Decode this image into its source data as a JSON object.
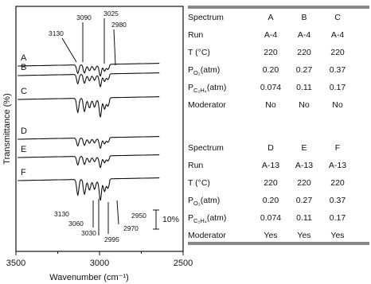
{
  "chart_data": {
    "type": "line",
    "xlabel": "Wavenumber (cm⁻¹)",
    "ylabel": "Transmittance (%)",
    "xlim": [
      3500,
      2500
    ],
    "x_ticks": [
      "3500",
      "3000",
      "2500"
    ],
    "scale_bar_label": "10%",
    "series": [
      {
        "name": "A",
        "peaks": [
          3130,
          3090,
          3025,
          2980
        ]
      },
      {
        "name": "B"
      },
      {
        "name": "C"
      },
      {
        "name": "D"
      },
      {
        "name": "E"
      },
      {
        "name": "F",
        "peaks": [
          3130,
          3060,
          3030,
          2995,
          2970,
          2950
        ]
      }
    ],
    "annotations": {
      "top": [
        "3090",
        "3025",
        "3130",
        "2980"
      ],
      "bottom": [
        "3130",
        "3060",
        "3030",
        "2995",
        "2970",
        "2950"
      ]
    }
  },
  "tables": [
    {
      "columns": [
        "Spectrum",
        "A",
        "B",
        "C"
      ],
      "rows": [
        {
          "label": "Run",
          "values": [
            "A-4",
            "A-4",
            "A-4"
          ]
        },
        {
          "label": "T (°C)",
          "values": [
            "220",
            "220",
            "220"
          ]
        },
        {
          "label_main": "P",
          "label_sub": "O₂",
          "label_suffix": "(atm)",
          "values": [
            "0.20",
            "0.27",
            "0.37"
          ]
        },
        {
          "label_main": "P",
          "label_sub": "C₂H₄",
          "label_suffix": "(atm)",
          "values": [
            "0.074",
            "0.11",
            "0.17"
          ]
        },
        {
          "label": "Moderator",
          "values": [
            "No",
            "No",
            "No"
          ]
        }
      ]
    },
    {
      "columns": [
        "Spectrum",
        "D",
        "E",
        "F"
      ],
      "rows": [
        {
          "label": "Run",
          "values": [
            "A-13",
            "A-13",
            "A-13"
          ]
        },
        {
          "label": "T (°C)",
          "values": [
            "220",
            "220",
            "220"
          ]
        },
        {
          "label_main": "P",
          "label_sub": "O₂",
          "label_suffix": "(atm)",
          "values": [
            "0.20",
            "0.27",
            "0.37"
          ]
        },
        {
          "label_main": "P",
          "label_sub": "C₂H₄",
          "label_suffix": "(atm)",
          "values": [
            "0.074",
            "0.11",
            "0.17"
          ]
        },
        {
          "label": "Moderator",
          "values": [
            "Yes",
            "Yes",
            "Yes"
          ]
        }
      ]
    }
  ]
}
